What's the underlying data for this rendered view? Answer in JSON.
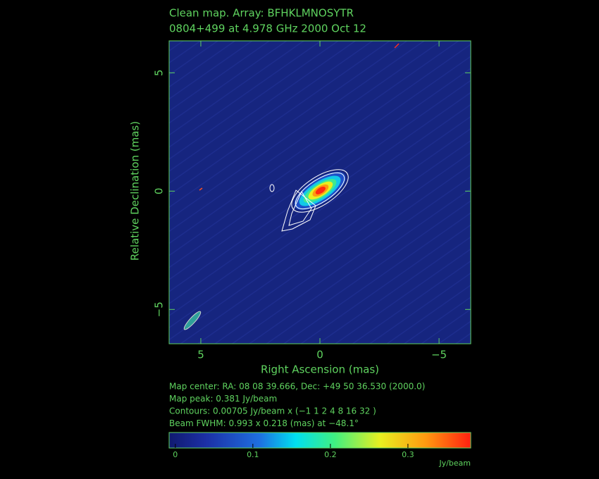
{
  "chart_data": {
    "type": "map",
    "title": "Clean map.  Array: BFHKLMNOSYTR",
    "subtitle": "0804+499 at 4.978 GHz 2000 Oct 12",
    "x_label": "Right Ascension  (mas)",
    "y_label": "Relative Declination  (mas)",
    "xlim": [
      6.33,
      -6.33
    ],
    "xticks": [
      5,
      0,
      {
        "value": -5,
        "label": "−5"
      }
    ],
    "ylim": [
      -6.45,
      6.35
    ],
    "yticks": [
      {
        "value": -5,
        "label": "−5"
      },
      0,
      5
    ],
    "info": [
      "Map center:  RA: 08 08 39.666,  Dec: +49 50 36.530 (2000.0)",
      "Map peak: 0.381 Jy/beam",
      "Contours: 0.00705 Jy/beam x (−1 1 2 4 8 16 32 )",
      "Beam FWHM: 0.993 x 0.218 (mas) at −48.1°"
    ],
    "colorbar": {
      "lim": [
        -0.008,
        0.381
      ],
      "ticks": [
        0,
        0.1,
        0.2,
        0.3
      ],
      "label": "Jy/beam"
    },
    "text_color": "#5fd35f",
    "map_color": "#16257f"
  }
}
